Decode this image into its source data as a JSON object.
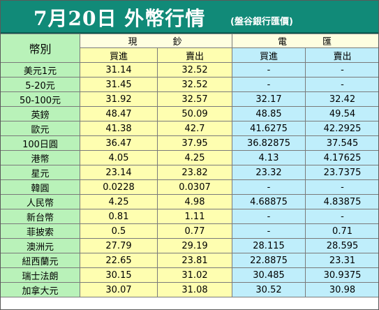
{
  "header": {
    "title": "7月20日 外幣行情",
    "subtitle": "(盤谷銀行匯價)"
  },
  "table": {
    "currency_header": "幣別",
    "cash_group": "現　　　鈔",
    "wire_group": "電　　　匯",
    "buy_label": "買進",
    "sell_label": "賣出",
    "rows": [
      {
        "name": "美元1元",
        "cash_buy": "31.14",
        "cash_sell": "32.52",
        "wire_buy": "-",
        "wire_sell": "-"
      },
      {
        "name": "5-20元",
        "cash_buy": "31.45",
        "cash_sell": "32.52",
        "wire_buy": "-",
        "wire_sell": "-"
      },
      {
        "name": "50-100元",
        "cash_buy": "31.92",
        "cash_sell": "32.57",
        "wire_buy": "32.17",
        "wire_sell": "32.42"
      },
      {
        "name": "英鎊",
        "cash_buy": "48.47",
        "cash_sell": "50.09",
        "wire_buy": "48.85",
        "wire_sell": "49.54"
      },
      {
        "name": "歐元",
        "cash_buy": "41.38",
        "cash_sell": "42.7",
        "wire_buy": "41.6275",
        "wire_sell": "42.2925"
      },
      {
        "name": "100日圓",
        "cash_buy": "36.47",
        "cash_sell": "37.95",
        "wire_buy": "36.82875",
        "wire_sell": "37.545"
      },
      {
        "name": "港幣",
        "cash_buy": "4.05",
        "cash_sell": "4.25",
        "wire_buy": "4.13",
        "wire_sell": "4.17625"
      },
      {
        "name": "星元",
        "cash_buy": "23.14",
        "cash_sell": "23.82",
        "wire_buy": "23.32",
        "wire_sell": "23.7375"
      },
      {
        "name": "韓圓",
        "cash_buy": "0.0228",
        "cash_sell": "0.0307",
        "wire_buy": "-",
        "wire_sell": "-"
      },
      {
        "name": "人民幣",
        "cash_buy": "4.25",
        "cash_sell": "4.98",
        "wire_buy": "4.68875",
        "wire_sell": "4.83875"
      },
      {
        "name": "新台幣",
        "cash_buy": "0.81",
        "cash_sell": "1.11",
        "wire_buy": "-",
        "wire_sell": "-"
      },
      {
        "name": "菲披索",
        "cash_buy": "0.5",
        "cash_sell": "0.77",
        "wire_buy": "-",
        "wire_sell": "0.71"
      },
      {
        "name": "澳洲元",
        "cash_buy": "27.79",
        "cash_sell": "29.19",
        "wire_buy": "28.115",
        "wire_sell": "28.595"
      },
      {
        "name": "紐西蘭元",
        "cash_buy": "22.65",
        "cash_sell": "23.81",
        "wire_buy": "22.8875",
        "wire_sell": "23.31"
      },
      {
        "name": "瑞士法朗",
        "cash_buy": "30.15",
        "cash_sell": "31.02",
        "wire_buy": "30.485",
        "wire_sell": "30.9375"
      },
      {
        "name": "加拿大元",
        "cash_buy": "30.07",
        "cash_sell": "31.08",
        "wire_buy": "30.52",
        "wire_sell": "30.98"
      }
    ]
  },
  "colors": {
    "title_bar": "#118a78",
    "currency_column": "#b9f2b9",
    "cash_columns": "#fefeb0",
    "wire_columns": "#bfeefb"
  }
}
